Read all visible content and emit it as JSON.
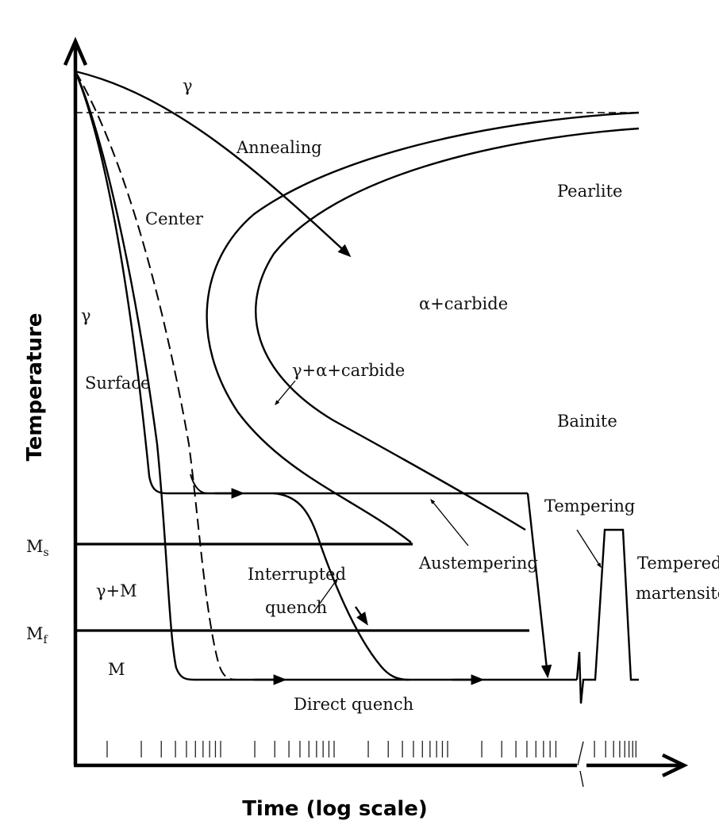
{
  "axes": {
    "y_label": "Temperature",
    "x_label": "Time (log scale)"
  },
  "regions": {
    "gamma_top": "γ",
    "gamma_left": "γ",
    "pearlite": "Pearlite",
    "alpha_carbide": "α+carbide",
    "gamma_alpha_carbide": "γ+α+carbide",
    "bainite": "Bainite",
    "gamma_m": "γ+M",
    "m": "M",
    "tempered_1": "Tempered",
    "tempered_2": "martensite"
  },
  "curves": {
    "annealing": "Annealing",
    "center": "Center",
    "surface": "Surface",
    "austempering": "Austempering",
    "interrupted_1": "Interrupted",
    "interrupted_2": "quench",
    "direct_quench": "Direct quench",
    "tempering": "Tempering"
  },
  "temperatures": {
    "ms": "M",
    "ms_sub": "s",
    "mf": "M",
    "mf_sub": "f"
  }
}
